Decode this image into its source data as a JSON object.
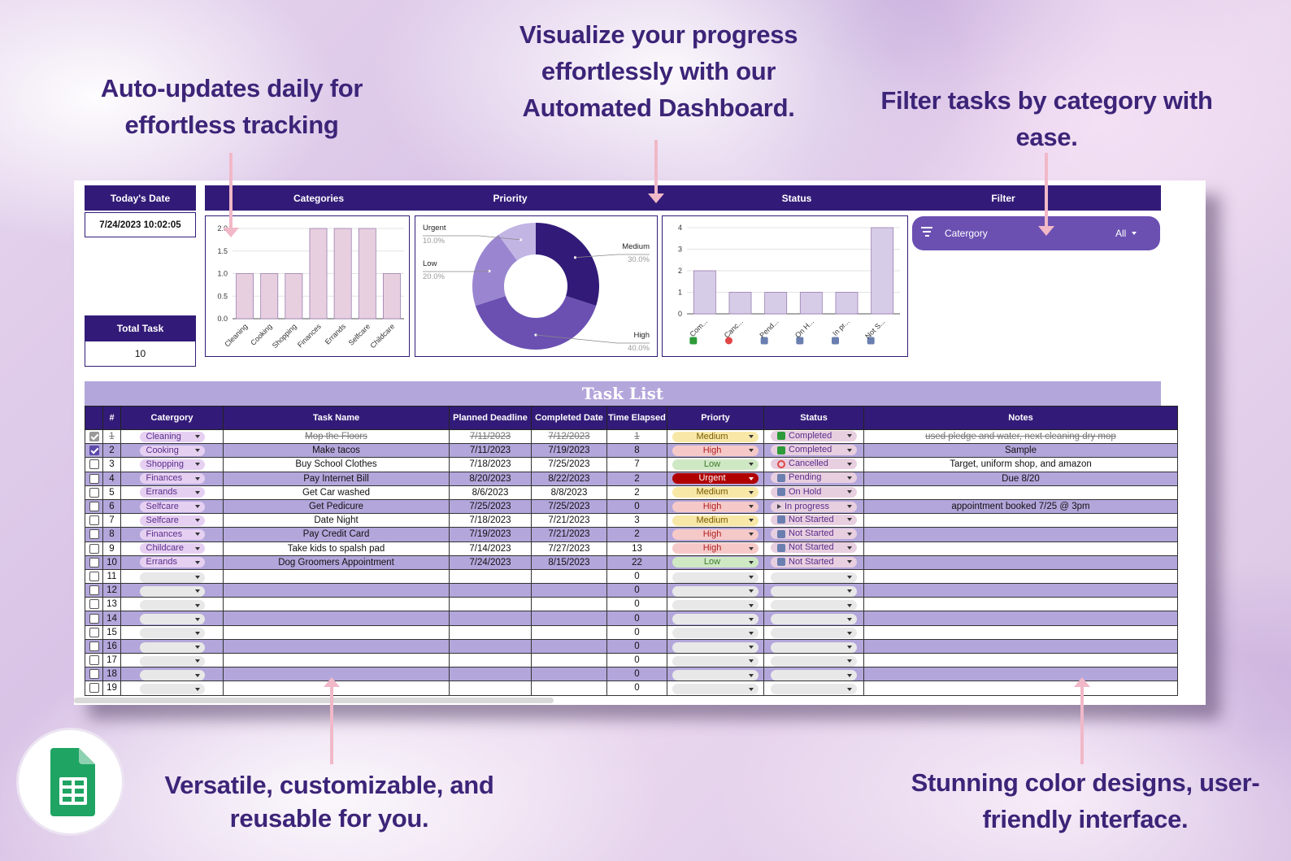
{
  "callouts": {
    "left_top": [
      "Auto-updates daily for",
      "effortless tracking"
    ],
    "center_top": [
      "Visualize your progress",
      "effortlessly with our",
      "Automated Dashboard."
    ],
    "right_top": [
      "Filter tasks by category with",
      "ease."
    ],
    "left_bottom": [
      "Versatile, customizable, and",
      "reusable for you."
    ],
    "right_bottom": [
      "Stunning color designs, user-",
      "friendly interface."
    ]
  },
  "dashboard": {
    "today_label": "Today's Date",
    "today_value": "7/24/2023 10:02:05",
    "total_label": "Total Task",
    "total_value": "10",
    "headers": {
      "categories": "Categories",
      "priority": "Priority",
      "status": "Status",
      "filter": "Filter"
    },
    "filter": {
      "label": "Catergory",
      "value": "All"
    }
  },
  "chart_data": [
    {
      "type": "bar",
      "categories": [
        "Cleaning",
        "Cooking",
        "Shopping",
        "Finances",
        "Errands",
        "Selfcare",
        "Childcare"
      ],
      "values": [
        1,
        1,
        1,
        2,
        2,
        2,
        1
      ],
      "yticks": [
        "0.0",
        "0.5",
        "1.0",
        "1.5",
        "2.0"
      ],
      "ylim": [
        0,
        2
      ],
      "bar_color": "#e8cfe0"
    },
    {
      "type": "pie",
      "labels": [
        "Medium",
        "High",
        "Low",
        "Urgent"
      ],
      "values": [
        30.0,
        40.0,
        20.0,
        10.0
      ],
      "value_labels": [
        "30.0%",
        "40.0%",
        "20.0%",
        "10.0%"
      ],
      "colors": [
        "#321b78",
        "#6b50b2",
        "#9a86d0",
        "#c2b5e4"
      ],
      "donut": true
    },
    {
      "type": "bar",
      "categories": [
        "Com...",
        "Canc...",
        "Pend...",
        "On H...",
        "In pr...",
        "Not S..."
      ],
      "values": [
        2,
        1,
        1,
        1,
        1,
        4
      ],
      "yticks": [
        "0",
        "1",
        "2",
        "3",
        "4"
      ],
      "ylim": [
        0,
        4
      ],
      "bar_color": "#d6cce8"
    }
  ],
  "task_list": {
    "title": "Task List",
    "columns": [
      "",
      "#",
      "Catergory",
      "Task Name",
      "Planned Deadline",
      "Completed Date",
      "Time Elapsed",
      "Priorty",
      "Status",
      "Notes"
    ],
    "rows": [
      {
        "checked": true,
        "done": true,
        "num": "1",
        "category": "Cleaning",
        "task": "Mop the Floors",
        "planned": "7/11/2023",
        "completed": "7/12/2023",
        "elapsed": "1",
        "priority": "Medium",
        "status": "Completed",
        "notes": "used pledge and water, next cleaning dry mop"
      },
      {
        "checked": true,
        "done": false,
        "num": "2",
        "category": "Cooking",
        "task": "Make tacos",
        "planned": "7/11/2023",
        "completed": "7/19/2023",
        "elapsed": "8",
        "priority": "High",
        "status": "Completed",
        "notes": "Sample"
      },
      {
        "checked": false,
        "done": false,
        "num": "3",
        "category": "Shopping",
        "task": "Buy School Clothes",
        "planned": "7/18/2023",
        "completed": "7/25/2023",
        "elapsed": "7",
        "priority": "Low",
        "status": "Cancelled",
        "notes": "Target, uniform shop, and amazon"
      },
      {
        "checked": false,
        "done": false,
        "num": "4",
        "category": "Finances",
        "task": "Pay Internet Bill",
        "planned": "8/20/2023",
        "completed": "8/22/2023",
        "elapsed": "2",
        "priority": "Urgent",
        "status": "Pending",
        "notes": "Due 8/20"
      },
      {
        "checked": false,
        "done": false,
        "num": "5",
        "category": "Errands",
        "task": "Get Car washed",
        "planned": "8/6/2023",
        "completed": "8/8/2023",
        "elapsed": "2",
        "priority": "Medium",
        "status": "On Hold",
        "notes": ""
      },
      {
        "checked": false,
        "done": false,
        "num": "6",
        "category": "Selfcare",
        "task": "Get Pedicure",
        "planned": "7/25/2023",
        "completed": "7/25/2023",
        "elapsed": "0",
        "priority": "High",
        "status": "In progress",
        "notes": "appointment booked 7/25 @ 3pm"
      },
      {
        "checked": false,
        "done": false,
        "num": "7",
        "category": "Selfcare",
        "task": "Date Night",
        "planned": "7/18/2023",
        "completed": "7/21/2023",
        "elapsed": "3",
        "priority": "Medium",
        "status": "Not Started",
        "notes": ""
      },
      {
        "checked": false,
        "done": false,
        "num": "8",
        "category": "Finances",
        "task": "Pay Credit Card",
        "planned": "7/19/2023",
        "completed": "7/21/2023",
        "elapsed": "2",
        "priority": "High",
        "status": "Not Started",
        "notes": ""
      },
      {
        "checked": false,
        "done": false,
        "num": "9",
        "category": "Childcare",
        "task": "Take kids to spalsh pad",
        "planned": "7/14/2023",
        "completed": "7/27/2023",
        "elapsed": "13",
        "priority": "High",
        "status": "Not Started",
        "notes": ""
      },
      {
        "checked": false,
        "done": false,
        "num": "10",
        "category": "Errands",
        "task": "Dog Groomers Appointment",
        "planned": "7/24/2023",
        "completed": "8/15/2023",
        "elapsed": "22",
        "priority": "Low",
        "status": "Not Started",
        "notes": ""
      },
      {
        "checked": false,
        "done": false,
        "num": "11",
        "category": "",
        "task": "",
        "planned": "",
        "completed": "",
        "elapsed": "0",
        "priority": "",
        "status": "",
        "notes": ""
      },
      {
        "checked": false,
        "done": false,
        "num": "12",
        "category": "",
        "task": "",
        "planned": "",
        "completed": "",
        "elapsed": "0",
        "priority": "",
        "status": "",
        "notes": ""
      },
      {
        "checked": false,
        "done": false,
        "num": "13",
        "category": "",
        "task": "",
        "planned": "",
        "completed": "",
        "elapsed": "0",
        "priority": "",
        "status": "",
        "notes": ""
      },
      {
        "checked": false,
        "done": false,
        "num": "14",
        "category": "",
        "task": "",
        "planned": "",
        "completed": "",
        "elapsed": "0",
        "priority": "",
        "status": "",
        "notes": ""
      },
      {
        "checked": false,
        "done": false,
        "num": "15",
        "category": "",
        "task": "",
        "planned": "",
        "completed": "",
        "elapsed": "0",
        "priority": "",
        "status": "",
        "notes": ""
      },
      {
        "checked": false,
        "done": false,
        "num": "16",
        "category": "",
        "task": "",
        "planned": "",
        "completed": "",
        "elapsed": "0",
        "priority": "",
        "status": "",
        "notes": ""
      },
      {
        "checked": false,
        "done": false,
        "num": "17",
        "category": "",
        "task": "",
        "planned": "",
        "completed": "",
        "elapsed": "0",
        "priority": "",
        "status": "",
        "notes": ""
      },
      {
        "checked": false,
        "done": false,
        "num": "18",
        "category": "",
        "task": "",
        "planned": "",
        "completed": "",
        "elapsed": "0",
        "priority": "",
        "status": "",
        "notes": ""
      },
      {
        "checked": false,
        "done": false,
        "num": "19",
        "category": "",
        "task": "",
        "planned": "",
        "completed": "",
        "elapsed": "0",
        "priority": "",
        "status": "",
        "notes": ""
      }
    ]
  },
  "colors": {
    "header_purple": "#321b78",
    "alt_row": "#b3a6db",
    "callout_text": "#3c2478",
    "arrow": "#f1b8c8",
    "priority": {
      "Low": "#cfe8c4",
      "Medium": "#f8e8a8",
      "High": "#f6c9c9",
      "Urgent": "#b00000"
    },
    "status": {
      "Completed": "#e8cfe0",
      "Cancelled": "#e8cfe0",
      "Pending": "#e8cfe0",
      "On Hold": "#e8cfe0",
      "In progress": "#e8cfe0",
      "Not Started": "#e8cfe0"
    }
  },
  "icons": [
    "filter-icon",
    "dropdown-arrow-icon",
    "checkbox-icon",
    "google-sheets-logo",
    "status-completed-icon",
    "status-cancelled-icon",
    "status-pending-icon",
    "status-on-hold-icon",
    "status-in-progress-icon",
    "status-not-started-icon"
  ]
}
